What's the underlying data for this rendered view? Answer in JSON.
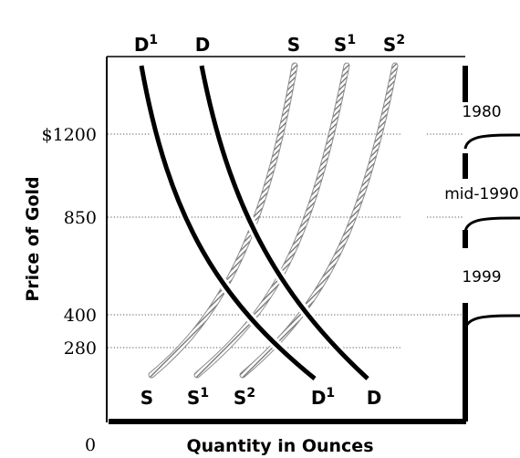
{
  "chart_data": {
    "type": "line",
    "xlabel": "Quantity in Ounces",
    "ylabel": "Price of Gold",
    "origin_label": "0",
    "y_ticks": [
      {
        "value": 1200,
        "label": "$1200"
      },
      {
        "value": 850,
        "label": "850"
      },
      {
        "value": 400,
        "label": "400"
      },
      {
        "value": 280,
        "label": "280"
      }
    ],
    "ylim": [
      0,
      1500
    ],
    "xlim": [
      0,
      1
    ],
    "grid": "dotted lines at tick prices",
    "demand_curves": [
      {
        "id": "D1",
        "top_label": "D",
        "top_sup": "1",
        "bottom_label": "D",
        "bottom_sup": "1",
        "color": "#000000"
      },
      {
        "id": "D",
        "top_label": "D",
        "top_sup": "",
        "bottom_label": "D",
        "bottom_sup": "",
        "color": "#000000"
      }
    ],
    "supply_curves": [
      {
        "id": "S",
        "top_label": "S",
        "top_sup": "",
        "bottom_label": "S",
        "bottom_sup": "",
        "color": "#8c8c8c"
      },
      {
        "id": "S1",
        "top_label": "S",
        "top_sup": "1",
        "bottom_label": "S",
        "bottom_sup": "1",
        "color": "#8c8c8c"
      },
      {
        "id": "S2",
        "top_label": "S",
        "top_sup": "2",
        "bottom_label": "S",
        "bottom_sup": "2",
        "color": "#8c8c8c"
      }
    ],
    "periods": [
      {
        "label": "1980",
        "price_from": 1200,
        "price_to": 1500
      },
      {
        "label": "mid-1990",
        "price_from": 850,
        "price_to": 1200
      },
      {
        "label": "1999",
        "price_from": 400,
        "price_to": 850
      }
    ]
  }
}
